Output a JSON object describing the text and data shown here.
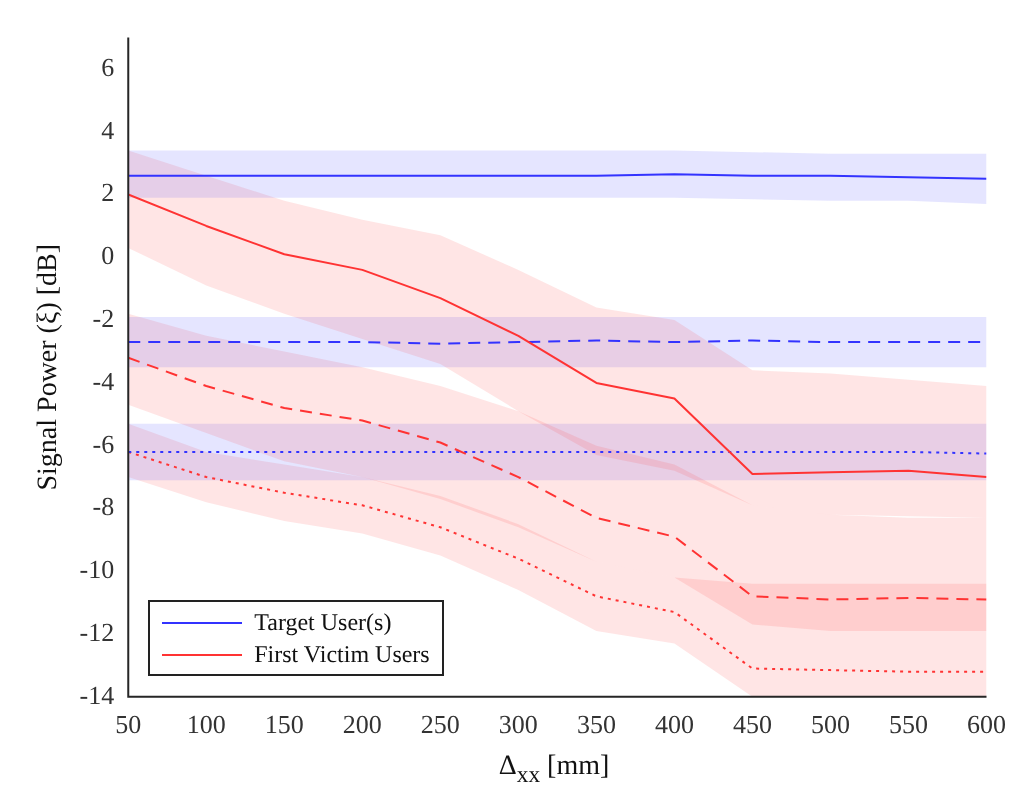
{
  "chart_data": {
    "type": "line",
    "ylabel": "Signal Power (ξ) [dB]",
    "xlabel": "Δ$_{xx}$ [mm]",
    "x": [
      50,
      100,
      150,
      200,
      250,
      300,
      350,
      400,
      450,
      500,
      550,
      600
    ],
    "xlim": [
      50,
      600
    ],
    "xticks": [
      50,
      100,
      150,
      200,
      250,
      300,
      350,
      400,
      450,
      500,
      550,
      600
    ],
    "ylim": [
      -14,
      7
    ],
    "yticks": [
      -14,
      -12,
      -10,
      -8,
      -6,
      -4,
      -2,
      0,
      2,
      4,
      6
    ],
    "grid": false,
    "legend": "bottom left",
    "marker": "none",
    "series": [
      {
        "name": "Target User(s)",
        "color": "#3333ff",
        "line_style": "solid",
        "values": [
          2.6,
          2.6,
          2.6,
          2.6,
          2.6,
          2.6,
          2.6,
          2.65,
          2.6,
          2.6,
          2.55,
          2.5
        ],
        "upper": [
          3.4,
          3.4,
          3.4,
          3.4,
          3.4,
          3.4,
          3.4,
          3.4,
          3.35,
          3.3,
          3.3,
          3.3
        ],
        "lower": [
          1.9,
          1.9,
          1.9,
          1.9,
          1.9,
          1.9,
          1.9,
          1.9,
          1.85,
          1.8,
          1.8,
          1.7
        ]
      },
      {
        "name": "First Victim Users",
        "color": "#ff3333",
        "line_style": "solid",
        "values": [
          2.0,
          1.0,
          0.1,
          -0.4,
          -1.3,
          -2.5,
          -4.0,
          -4.5,
          -6.9,
          -6.85,
          -6.8,
          -7.0
        ],
        "upper": [
          3.4,
          2.6,
          1.8,
          1.2,
          0.7,
          -0.4,
          -1.6,
          -2.0,
          -3.6,
          -3.7,
          -3.9,
          -4.1
        ],
        "lower": [
          0.3,
          -0.9,
          -1.8,
          -2.6,
          -3.4,
          -4.9,
          -6.3,
          -6.8,
          -7.9,
          -8.2,
          -8.25,
          -8.3
        ]
      },
      {
        "color": "#3333ff",
        "line_style": "dashed",
        "values": [
          -2.7,
          -2.7,
          -2.7,
          -2.7,
          -2.75,
          -2.7,
          -2.65,
          -2.7,
          -2.65,
          -2.7,
          -2.7,
          -2.7
        ],
        "upper": [
          -1.9,
          -1.9,
          -1.9,
          -1.9,
          -1.9,
          -1.9,
          -1.9,
          -1.9,
          -1.9,
          -1.9,
          -1.9,
          -1.9
        ],
        "lower": [
          -3.5,
          -3.5,
          -3.5,
          -3.5,
          -3.5,
          -3.5,
          -3.5,
          -3.5,
          -3.5,
          -3.5,
          -3.5,
          -3.5
        ]
      },
      {
        "color": "#ff3333",
        "line_style": "dashed",
        "values": [
          -3.2,
          -4.1,
          -4.8,
          -5.2,
          -5.9,
          -7.0,
          -8.3,
          -8.9,
          -10.8,
          -10.9,
          -10.85,
          -10.9
        ],
        "upper": [
          -1.8,
          -2.5,
          -3.0,
          -3.5,
          -4.1,
          -4.9,
          -6.0,
          -6.6,
          -7.9,
          -8.2,
          -8.3,
          -8.3
        ],
        "lower": [
          -4.7,
          -5.6,
          -6.5,
          -7.0,
          -7.7,
          -8.6,
          -9.7,
          -10.2,
          -11.7,
          -11.9,
          -11.9,
          -11.9
        ]
      },
      {
        "color": "#3333ff",
        "line_style": "dotted",
        "values": [
          -6.2,
          -6.2,
          -6.2,
          -6.2,
          -6.2,
          -6.2,
          -6.2,
          -6.2,
          -6.2,
          -6.2,
          -6.2,
          -6.25
        ],
        "upper": [
          -5.3,
          -5.3,
          -5.3,
          -5.3,
          -5.3,
          -5.3,
          -5.3,
          -5.3,
          -5.3,
          -5.3,
          -5.3,
          -5.3
        ],
        "lower": [
          -7.1,
          -7.1,
          -7.1,
          -7.1,
          -7.1,
          -7.1,
          -7.1,
          -7.1,
          -7.1,
          -7.1,
          -7.1,
          -7.1
        ]
      },
      {
        "color": "#ff3333",
        "line_style": "dotted",
        "values": [
          -6.2,
          -7.0,
          -7.5,
          -7.9,
          -8.6,
          -9.6,
          -10.8,
          -11.3,
          -13.1,
          -13.15,
          -13.2,
          -13.2
        ],
        "upper": [
          -5.3,
          -6.2,
          -6.6,
          -7.0,
          -7.6,
          -8.5,
          -9.7,
          -10.2,
          -10.4,
          -10.4,
          -10.4,
          -10.4
        ],
        "lower": [
          -7.0,
          -7.8,
          -8.4,
          -8.8,
          -9.5,
          -10.6,
          -11.9,
          -12.3,
          -14,
          -14,
          -14,
          -14
        ]
      }
    ]
  }
}
